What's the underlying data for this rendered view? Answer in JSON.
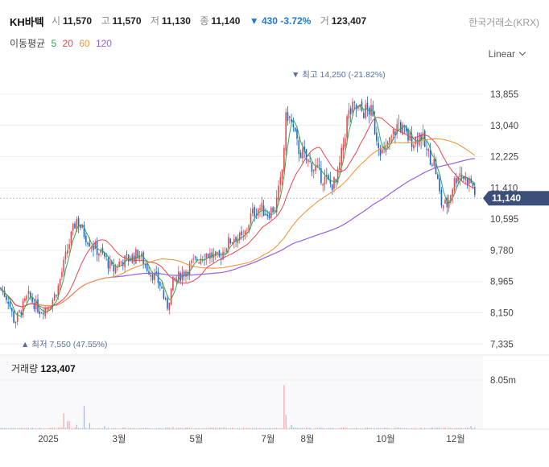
{
  "header": {
    "name": "KH바텍",
    "exchange": "한국거래소(KRX)",
    "open_label": "시",
    "open": "11,570",
    "high_label": "고",
    "high": "11,570",
    "low_label": "저",
    "low": "11,130",
    "close_label": "종",
    "close": "11,140",
    "change": "▼ 430 -3.72%",
    "volume_label": "거",
    "volume": "123,407"
  },
  "ma": {
    "label": "이동평균",
    "p5": "5",
    "p20": "20",
    "p60": "60",
    "p120": "120",
    "colors": {
      "p5": "#2fa84f",
      "p20": "#e5484d",
      "p60": "#f2963a",
      "p120": "#9b5de5"
    }
  },
  "scale_label": "Linear",
  "volume_panel": {
    "label": "거래량",
    "value": "123,407"
  },
  "colors": {
    "up": "#e5484d",
    "down": "#1e66c8",
    "price_tag": "#3b4f7a",
    "marker": "#5a6e9a",
    "grid": "#eeeeee"
  },
  "chart_data": {
    "type": "candlestick",
    "price_axis_ticks": [
      "13,855",
      "13,040",
      "12,225",
      "11,410",
      "10,595",
      "9,780",
      "8,965",
      "8,150",
      "7,335"
    ],
    "price_axis_values": [
      13855,
      13040,
      12225,
      11410,
      10595,
      9780,
      8965,
      8150,
      7335
    ],
    "volume_axis_ticks": [
      "8.05m"
    ],
    "x_tick_labels": [
      "2025",
      "3월",
      "5월",
      "7월",
      "8월",
      "10월",
      "12월"
    ],
    "last_price": 11140,
    "last_price_label": "11,140",
    "annotations": {
      "high": "최고 14,250 (-21.82%)",
      "low": "최저 7,550 (47.55%)"
    },
    "close_anchors": [
      [
        0,
        8800
      ],
      [
        10,
        8500
      ],
      [
        18,
        7900
      ],
      [
        28,
        8300
      ],
      [
        35,
        8600
      ],
      [
        42,
        8400
      ],
      [
        50,
        8200
      ],
      [
        62,
        8350
      ],
      [
        72,
        8800
      ],
      [
        85,
        9900
      ],
      [
        95,
        10600
      ],
      [
        105,
        10200
      ],
      [
        115,
        9900
      ],
      [
        130,
        9600
      ],
      [
        140,
        9250
      ],
      [
        150,
        9500
      ],
      [
        160,
        9550
      ],
      [
        172,
        9700
      ],
      [
        182,
        9350
      ],
      [
        192,
        9100
      ],
      [
        200,
        8850
      ],
      [
        207,
        8250
      ],
      [
        215,
        8950
      ],
      [
        225,
        9150
      ],
      [
        235,
        9350
      ],
      [
        245,
        9550
      ],
      [
        255,
        9700
      ],
      [
        262,
        9650
      ],
      [
        272,
        9550
      ],
      [
        282,
        9950
      ],
      [
        292,
        10150
      ],
      [
        302,
        10050
      ],
      [
        312,
        10700
      ],
      [
        322,
        10900
      ],
      [
        332,
        10750
      ],
      [
        342,
        10900
      ],
      [
        350,
        11700
      ],
      [
        356,
        13400
      ],
      [
        362,
        13100
      ],
      [
        370,
        12450
      ],
      [
        380,
        12150
      ],
      [
        390,
        11950
      ],
      [
        400,
        11700
      ],
      [
        410,
        11500
      ],
      [
        418,
        11550
      ],
      [
        425,
        12350
      ],
      [
        432,
        13300
      ],
      [
        440,
        13500
      ],
      [
        450,
        13400
      ],
      [
        460,
        13450
      ],
      [
        468,
        12750
      ],
      [
        476,
        12250
      ],
      [
        485,
        12650
      ],
      [
        495,
        13100
      ],
      [
        505,
        12750
      ],
      [
        515,
        12650
      ],
      [
        522,
        12850
      ],
      [
        530,
        12350
      ],
      [
        540,
        12050
      ],
      [
        548,
        11000
      ],
      [
        555,
        10950
      ],
      [
        562,
        11450
      ],
      [
        570,
        11850
      ],
      [
        578,
        11650
      ],
      [
        586,
        11550
      ],
      [
        592,
        11140
      ]
    ],
    "volume_spikes": [
      [
        80,
        2.6
      ],
      [
        85,
        1.3
      ],
      [
        95,
        0.7
      ],
      [
        104,
        3.8
      ],
      [
        112,
        1.0
      ],
      [
        130,
        0.5
      ],
      [
        215,
        0.35
      ],
      [
        280,
        0.3
      ],
      [
        352,
        7.2
      ],
      [
        356,
        2.4
      ],
      [
        362,
        0.7
      ],
      [
        585,
        0.5
      ]
    ],
    "grid": true
  }
}
